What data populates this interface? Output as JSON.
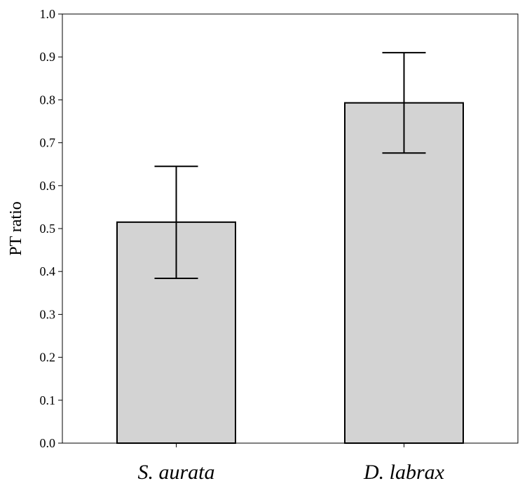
{
  "chart_data": {
    "type": "bar",
    "title": "",
    "xlabel": "",
    "ylabel": "PT ratio",
    "ylim": [
      0,
      1.0
    ],
    "yticks": [
      "0.0",
      "0.1",
      "0.2",
      "0.3",
      "0.4",
      "0.5",
      "0.6",
      "0.7",
      "0.8",
      "0.9",
      "1.0"
    ],
    "categories": [
      "S. aurata",
      "D. labrax"
    ],
    "values": [
      0.515,
      0.793
    ],
    "error_low": [
      0.384,
      0.676
    ],
    "error_high": [
      0.645,
      0.91
    ],
    "grid": false,
    "bar_color": "#d3d3d3",
    "edge_color": "#000000"
  }
}
